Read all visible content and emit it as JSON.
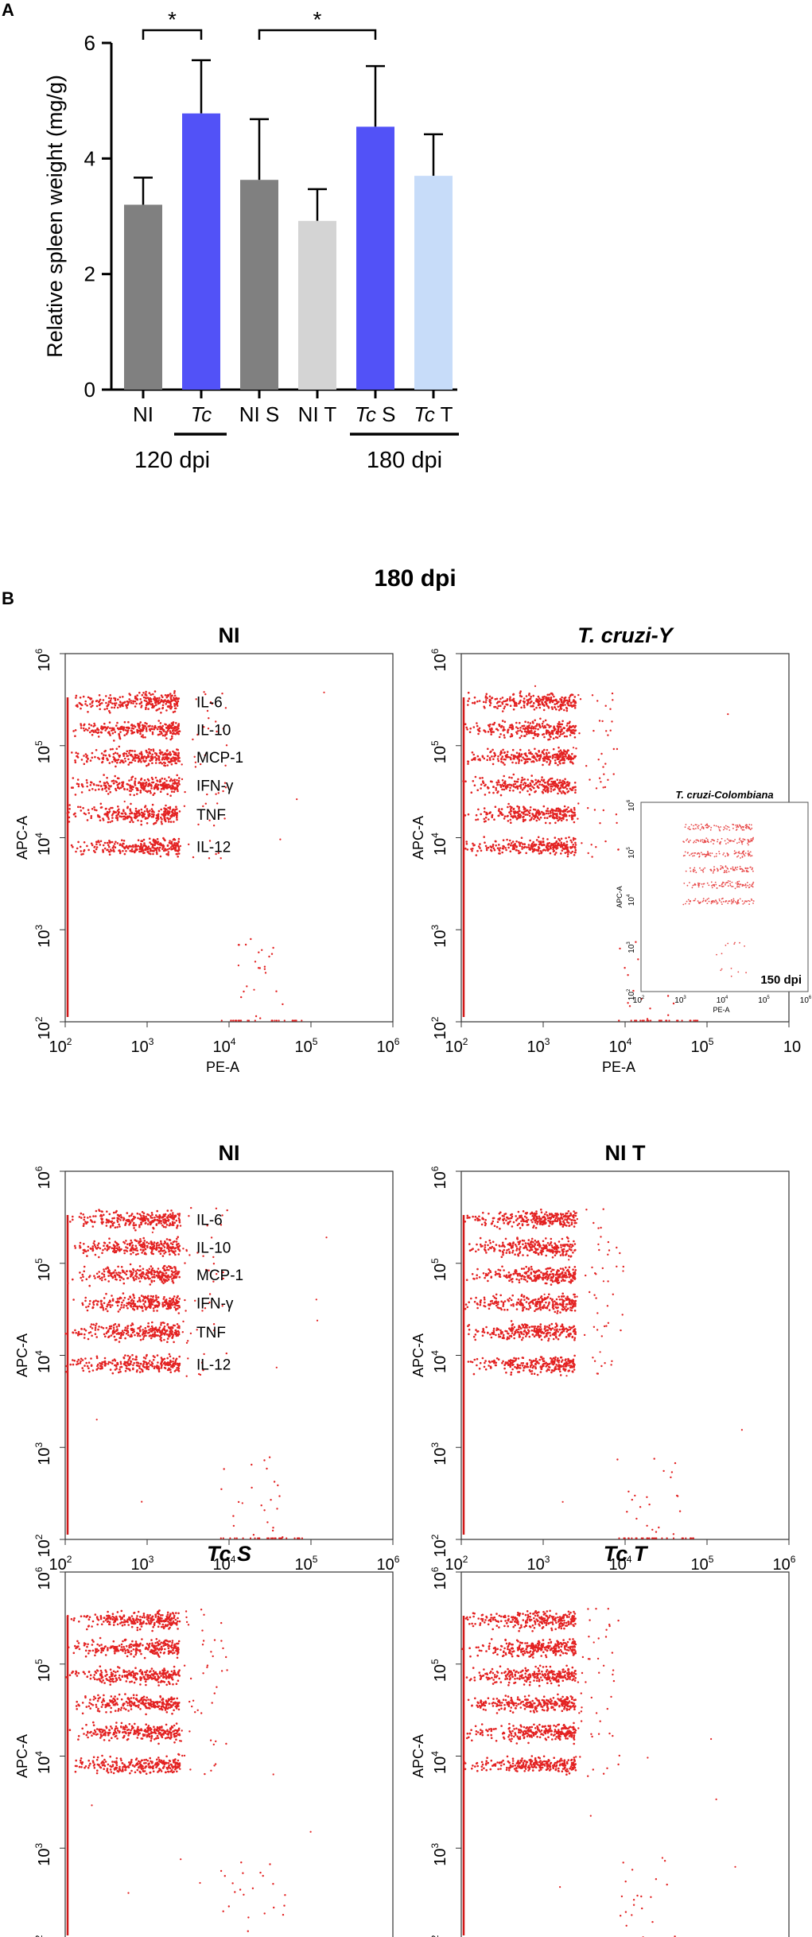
{
  "chart_data": [
    {
      "panel_label": "A",
      "type": "bar",
      "ylabel": "Relative spleen weight (mg/g)",
      "ylim": [
        0,
        6
      ],
      "yticks": [
        0,
        2,
        4,
        6
      ],
      "bars": [
        {
          "label_parts": [
            {
              "text": "NI",
              "italic": false
            }
          ],
          "value": 3.2,
          "error": 0.47,
          "color": "#808080"
        },
        {
          "label_parts": [
            {
              "text": "Tc",
              "italic": true
            }
          ],
          "value": 4.78,
          "error": 0.92,
          "color": "#5252f7"
        },
        {
          "label_parts": [
            {
              "text": "NI S",
              "italic": false
            }
          ],
          "value": 3.63,
          "error": 1.05,
          "color": "#808080"
        },
        {
          "label_parts": [
            {
              "text": "NI T",
              "italic": false
            }
          ],
          "value": 2.92,
          "error": 0.55,
          "color": "#d4d4d4"
        },
        {
          "label_parts": [
            {
              "text": "Tc",
              "italic": true
            },
            {
              "text": " S",
              "italic": false
            }
          ],
          "value": 4.55,
          "error": 1.05,
          "color": "#5252f7"
        },
        {
          "label_parts": [
            {
              "text": "Tc",
              "italic": true
            },
            {
              "text": " T",
              "italic": false
            }
          ],
          "value": 3.7,
          "error": 0.72,
          "color": "#c7dcf9"
        }
      ],
      "group_labels": [
        {
          "text": "120 dpi",
          "bars": [
            0,
            1
          ]
        },
        {
          "text": "180 dpi",
          "bars": [
            4,
            5
          ]
        }
      ],
      "significance": [
        {
          "bars": [
            0,
            1
          ],
          "text": "*"
        },
        {
          "bars": [
            2,
            4
          ],
          "text": "*"
        }
      ]
    },
    {
      "panel_label": "B",
      "type": "scatter",
      "title": "180 dpi",
      "xlabel": "PE-A",
      "ylabel": "APC-A",
      "xscale": "log",
      "yscale": "log",
      "xlim": [
        100,
        1000000
      ],
      "ylim": [
        100,
        1000000
      ],
      "x_tick_exponents": [
        2,
        3,
        4,
        5,
        6
      ],
      "y_tick_exponents": [
        2,
        3,
        4,
        5,
        6
      ],
      "tick_base": "10",
      "point_color": "#e32222",
      "cluster_y_values": [
        300000,
        150000,
        75000,
        37000,
        18000,
        8000
      ],
      "cluster_x_range": [
        100,
        2500
      ],
      "plots": [
        {
          "title": "NI",
          "title_italic": false,
          "cluster_labels": [
            "IL-6",
            "IL-10",
            "MCP-1",
            "IFN-γ",
            "TNF",
            "IL-12"
          ],
          "last_tick_override": ""
        },
        {
          "title": "T. cruzi-Y",
          "title_italic": true,
          "cluster_labels": [],
          "last_tick_override": "10",
          "inset": {
            "title": "T. cruzi-Colombiana",
            "corner_label": "150 dpi",
            "xlabel": "PE-A",
            "ylabel": "APC-A"
          }
        },
        {
          "title": "NI",
          "title_italic": false,
          "cluster_labels": [
            "IL-6",
            "IL-10",
            "MCP-1",
            "IFN-γ",
            "TNF",
            "IL-12"
          ],
          "last_tick_override": ""
        },
        {
          "title": "NI T",
          "title_italic": false,
          "cluster_labels": [],
          "last_tick_override": ""
        },
        {
          "title": "Tc S",
          "title_italic": true,
          "cluster_labels": [],
          "last_tick_override": ""
        },
        {
          "title": "Tc T",
          "title_italic": true,
          "cluster_labels": [],
          "last_tick_override": ""
        }
      ]
    }
  ]
}
